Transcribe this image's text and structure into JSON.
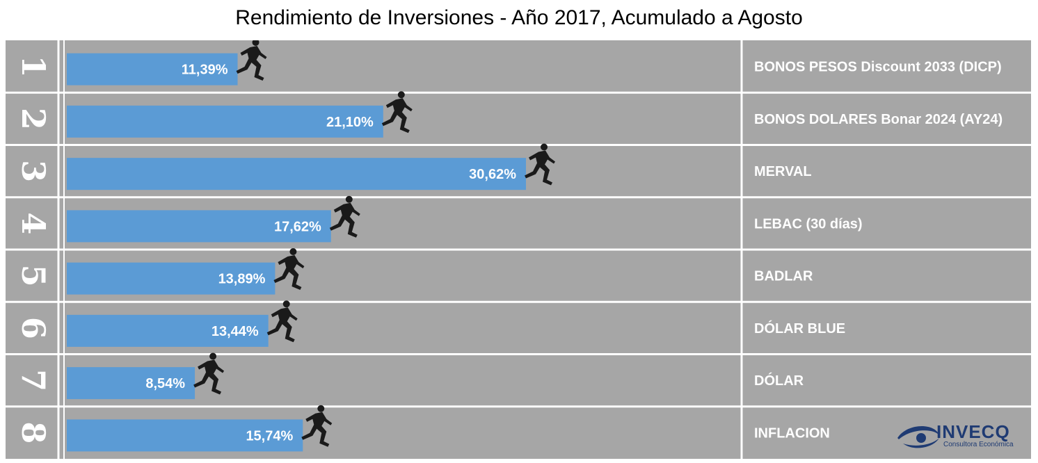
{
  "chart_data": {
    "type": "bar",
    "orientation": "horizontal",
    "title": "Rendimiento de Inversiones - Año 2017, Acumulado a Agosto",
    "ranks": [
      "1",
      "2",
      "3",
      "4",
      "5",
      "6",
      "7",
      "8"
    ],
    "categories": [
      "BONOS PESOS Discount 2033 (DICP)",
      "BONOS DOLARES Bonar 2024 (AY24)",
      "MERVAL",
      "LEBAC (30 días)",
      "BADLAR",
      "DÓLAR BLUE",
      "DÓLAR",
      "INFLACION"
    ],
    "values": [
      11.39,
      21.1,
      30.62,
      17.62,
      13.89,
      13.44,
      8.54,
      15.74
    ],
    "value_labels": [
      "11,39%",
      "21,10%",
      "30,62%",
      "17,62%",
      "13,89%",
      "13,44%",
      "8,54%",
      "15,74%"
    ],
    "xlim": [
      0,
      45
    ],
    "bar_color": "#5b9bd5",
    "track_color": "#a6a6a6",
    "runner_icon": "runner-icon"
  },
  "logo": {
    "name": "INVECQ",
    "tagline": "Consultora Económica",
    "color": "#1f3b73"
  }
}
